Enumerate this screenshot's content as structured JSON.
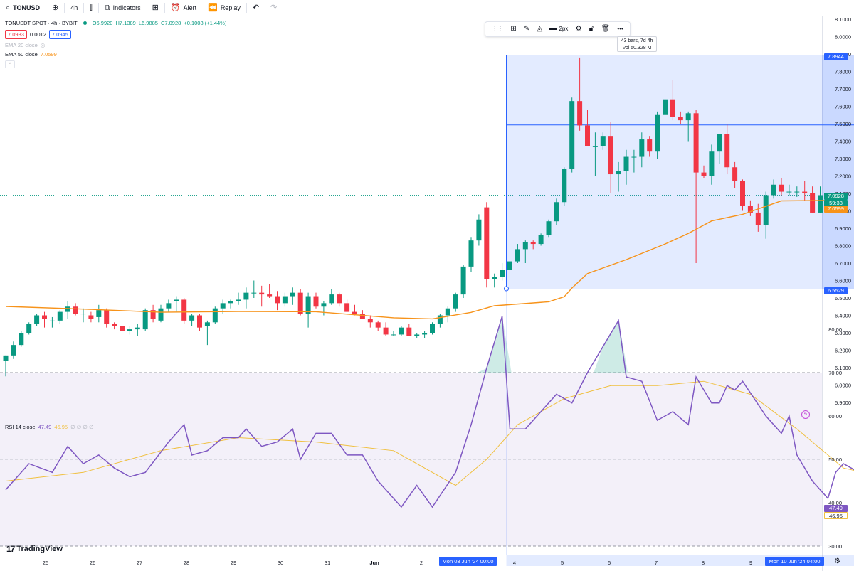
{
  "toolbar": {
    "symbol": "TONUSD",
    "interval": "4h",
    "indicators_label": "Indicators",
    "alert_label": "Alert",
    "replay_label": "Replay",
    "icons": [
      "search-icon",
      "plus-circle-icon",
      "candles-icon",
      "indicators-icon",
      "layout-grid-icon",
      "alarm-icon",
      "rewind-icon",
      "undo-icon",
      "redo-icon"
    ]
  },
  "legend": {
    "title": "TONUSDT SPOT · 4h · BYBIT",
    "ohlc": {
      "o": "O6.9920",
      "h": "H7.1389",
      "l": "L6.9885",
      "c": "C7.0928",
      "chg": "+0.1008 (+1.44%)"
    },
    "sell": "7.0933",
    "spread": "0.0012",
    "buy": "7.0945",
    "ema20": "EMA 20 close",
    "ema50_label": "EMA 50 close",
    "ema50_value": "7.0599"
  },
  "drawing_toolbar": {
    "width_label": "2px",
    "icons": [
      "drag-handle-icon",
      "template-icon",
      "pencil-icon",
      "fill-icon",
      "line-style-icon",
      "settings-icon",
      "lock-icon",
      "trash-icon",
      "more-icon"
    ]
  },
  "range_tooltip": {
    "bars": "43 bars, 7d 4h",
    "vol": "Vol 50.328 M"
  },
  "price_axis": {
    "ticks": [
      "8.1000",
      "8.0000",
      "7.9000",
      "7.8000",
      "7.7000",
      "7.6000",
      "7.5000",
      "7.4000",
      "7.3000",
      "7.2000",
      "7.1000",
      "7.0000",
      "6.9000",
      "6.8000",
      "6.7000",
      "6.6000",
      "6.5000",
      "6.4000",
      "6.3000",
      "6.2000",
      "6.1000",
      "6.0000",
      "5.9000"
    ],
    "range_top": "7.8944",
    "range_bottom": "6.5529",
    "last_price": "7.0928",
    "countdown": "59:33",
    "ema_label": "7.0599"
  },
  "rsi": {
    "legend": "RSI 14 close",
    "value": "47.49",
    "ma_value": "46.95",
    "extra": "∅ ∅ ∅ ∅",
    "ticks": [
      "80.00",
      "70.00",
      "60.00",
      "50.00",
      "40.00",
      "30.00"
    ]
  },
  "time_axis": {
    "labels": [
      "25",
      "26",
      "27",
      "28",
      "29",
      "30",
      "31",
      "Jun",
      "2",
      "4",
      "5",
      "6",
      "7",
      "8",
      "9"
    ],
    "range_start": "Mon 03 Jun '24   00:00",
    "range_end": "Mon 10 Jun '24   04:00"
  },
  "brand": "TradingView",
  "colors": {
    "up": "#089981",
    "down": "#f23645",
    "ema50": "#f7931a",
    "rsi": "#7e57c2",
    "rsi_ma": "#f0c040",
    "selection": "#2962ff"
  },
  "chart_data": {
    "type": "candlestick",
    "symbol": "TONUSDT",
    "interval": "4h",
    "ohlc": [
      [
        6.14,
        6.17,
        6.05,
        6.17
      ],
      [
        6.17,
        6.25,
        6.15,
        6.23
      ],
      [
        6.23,
        6.31,
        6.22,
        6.3
      ],
      [
        6.3,
        6.36,
        6.29,
        6.35
      ],
      [
        6.35,
        6.41,
        6.34,
        6.4
      ],
      [
        6.4,
        6.42,
        6.33,
        6.38
      ],
      [
        6.37,
        6.39,
        6.33,
        6.37
      ],
      [
        6.37,
        6.43,
        6.35,
        6.42
      ],
      [
        6.42,
        6.48,
        6.38,
        6.45
      ],
      [
        6.45,
        6.47,
        6.4,
        6.41
      ],
      [
        6.41,
        6.44,
        6.36,
        6.41
      ],
      [
        6.4,
        6.42,
        6.36,
        6.38
      ],
      [
        6.39,
        6.46,
        6.36,
        6.43
      ],
      [
        6.43,
        6.44,
        6.33,
        6.35
      ],
      [
        6.35,
        6.36,
        6.32,
        6.34
      ],
      [
        6.34,
        6.35,
        6.3,
        6.31
      ],
      [
        6.31,
        6.34,
        6.29,
        6.32
      ],
      [
        6.32,
        6.35,
        6.28,
        6.33
      ],
      [
        6.32,
        6.44,
        6.31,
        6.43
      ],
      [
        6.43,
        6.46,
        6.36,
        6.38
      ],
      [
        6.37,
        6.46,
        6.36,
        6.44
      ],
      [
        6.44,
        6.49,
        6.42,
        6.47
      ],
      [
        6.48,
        6.51,
        6.42,
        6.49
      ],
      [
        6.49,
        6.5,
        6.35,
        6.37
      ],
      [
        6.37,
        6.41,
        6.34,
        6.4
      ],
      [
        6.4,
        6.41,
        6.31,
        6.33
      ],
      [
        6.34,
        6.37,
        6.23,
        6.36
      ],
      [
        6.36,
        6.45,
        6.35,
        6.44
      ],
      [
        6.44,
        6.49,
        6.41,
        6.47
      ],
      [
        6.47,
        6.49,
        6.44,
        6.48
      ],
      [
        6.48,
        6.53,
        6.46,
        6.49
      ],
      [
        6.49,
        6.56,
        6.44,
        6.53
      ],
      [
        6.53,
        6.6,
        6.5,
        6.53
      ],
      [
        6.53,
        6.57,
        6.45,
        6.52
      ],
      [
        6.52,
        6.58,
        6.5,
        6.51
      ],
      [
        6.51,
        6.54,
        6.43,
        6.47
      ],
      [
        6.47,
        6.53,
        6.45,
        6.51
      ],
      [
        6.51,
        6.56,
        6.46,
        6.53
      ],
      [
        6.53,
        6.55,
        6.4,
        6.41
      ],
      [
        6.41,
        6.53,
        6.33,
        6.51
      ],
      [
        6.51,
        6.53,
        6.44,
        6.45
      ],
      [
        6.45,
        6.48,
        6.4,
        6.47
      ],
      [
        6.47,
        6.55,
        6.46,
        6.52
      ],
      [
        6.52,
        6.53,
        6.45,
        6.47
      ],
      [
        6.47,
        6.49,
        6.42,
        6.42
      ],
      [
        6.42,
        6.46,
        6.4,
        6.41
      ],
      [
        6.41,
        6.43,
        6.38,
        6.38
      ],
      [
        6.38,
        6.4,
        6.33,
        6.36
      ],
      [
        6.36,
        6.37,
        6.31,
        6.33
      ],
      [
        6.33,
        6.36,
        6.28,
        6.29
      ],
      [
        6.29,
        6.31,
        6.28,
        6.29
      ],
      [
        6.29,
        6.34,
        6.28,
        6.33
      ],
      [
        6.33,
        6.35,
        6.28,
        6.28
      ],
      [
        6.28,
        6.3,
        6.27,
        6.29
      ],
      [
        6.29,
        6.31,
        6.27,
        6.3
      ],
      [
        6.3,
        6.36,
        6.29,
        6.35
      ],
      [
        6.35,
        6.41,
        6.33,
        6.4
      ],
      [
        6.4,
        6.45,
        6.36,
        6.44
      ],
      [
        6.44,
        6.53,
        6.42,
        6.52
      ],
      [
        6.52,
        6.69,
        6.5,
        6.68
      ],
      [
        6.68,
        6.85,
        6.65,
        6.83
      ],
      [
        6.83,
        6.98,
        6.8,
        6.95
      ],
      [
        7.02,
        7.05,
        6.56,
        6.61
      ],
      [
        6.61,
        6.64,
        6.56,
        6.62
      ],
      [
        6.62,
        6.7,
        6.6,
        6.66
      ],
      [
        6.66,
        6.72,
        6.64,
        6.71
      ],
      [
        6.71,
        6.81,
        6.7,
        6.78
      ],
      [
        6.78,
        6.83,
        6.7,
        6.82
      ],
      [
        6.82,
        6.83,
        6.78,
        6.81
      ],
      [
        6.81,
        6.87,
        6.8,
        6.86
      ],
      [
        6.86,
        6.95,
        6.85,
        6.94
      ],
      [
        6.94,
        7.07,
        6.92,
        7.05
      ],
      [
        7.05,
        7.25,
        7.03,
        7.24
      ],
      [
        7.24,
        7.65,
        7.22,
        7.63
      ],
      [
        7.63,
        7.88,
        7.46,
        7.49
      ],
      [
        7.49,
        7.58,
        7.38,
        7.37
      ],
      [
        7.37,
        7.45,
        7.2,
        7.37
      ],
      [
        7.37,
        7.45,
        7.35,
        7.43
      ],
      [
        7.43,
        7.51,
        7.1,
        7.21
      ],
      [
        7.21,
        7.28,
        7.11,
        7.23
      ],
      [
        7.23,
        7.35,
        7.15,
        7.31
      ],
      [
        7.31,
        7.35,
        7.22,
        7.31
      ],
      [
        7.31,
        7.45,
        7.25,
        7.41
      ],
      [
        7.41,
        7.43,
        7.31,
        7.34
      ],
      [
        7.34,
        7.57,
        7.3,
        7.55
      ],
      [
        7.55,
        7.65,
        7.48,
        7.64
      ],
      [
        7.64,
        7.75,
        7.52,
        7.54
      ],
      [
        7.54,
        7.57,
        7.5,
        7.52
      ],
      [
        7.52,
        7.57,
        7.4,
        7.56
      ],
      [
        7.56,
        7.58,
        6.7,
        7.22
      ],
      [
        7.22,
        7.26,
        7.19,
        7.2
      ],
      [
        7.2,
        7.38,
        7.15,
        7.34
      ],
      [
        7.34,
        7.44,
        7.27,
        7.44
      ],
      [
        7.44,
        7.5,
        7.21,
        7.25
      ],
      [
        7.25,
        7.28,
        7.13,
        7.17
      ],
      [
        7.17,
        7.18,
        7.0,
        7.03
      ],
      [
        7.03,
        7.06,
        6.97,
        6.99
      ],
      [
        6.99,
        7.04,
        6.88,
        6.92
      ],
      [
        6.92,
        7.11,
        6.84,
        7.09
      ],
      [
        7.09,
        7.18,
        7.07,
        7.15
      ],
      [
        7.15,
        7.19,
        7.09,
        7.11
      ],
      [
        7.11,
        7.15,
        7.09,
        7.11
      ],
      [
        7.11,
        7.14,
        7.08,
        7.11
      ],
      [
        7.11,
        7.17,
        7.06,
        7.1
      ],
      [
        7.1,
        7.14,
        6.99,
        6.99
      ],
      [
        6.99,
        7.14,
        6.99,
        7.09
      ]
    ],
    "ema50": [
      [
        0,
        6.451
      ],
      [
        10,
        6.436
      ],
      [
        20,
        6.418
      ],
      [
        30,
        6.422
      ],
      [
        40,
        6.421
      ],
      [
        50,
        6.386
      ],
      [
        55,
        6.38
      ],
      [
        60,
        6.417
      ],
      [
        63,
        6.455
      ],
      [
        70,
        6.478
      ],
      [
        72,
        6.507
      ],
      [
        73,
        6.557
      ],
      [
        75,
        6.64
      ],
      [
        80,
        6.72
      ],
      [
        85,
        6.81
      ],
      [
        88,
        6.87
      ],
      [
        91,
        6.942
      ],
      [
        95,
        6.98
      ],
      [
        100,
        7.057
      ],
      [
        107,
        7.06
      ]
    ],
    "rsi": [
      [
        0,
        43
      ],
      [
        3,
        49
      ],
      [
        6,
        47
      ],
      [
        8,
        53
      ],
      [
        10,
        49
      ],
      [
        12,
        51
      ],
      [
        14,
        48
      ],
      [
        16,
        46
      ],
      [
        18,
        47
      ],
      [
        21,
        54
      ],
      [
        23,
        58
      ],
      [
        24,
        51
      ],
      [
        26,
        52
      ],
      [
        28,
        55
      ],
      [
        30,
        55
      ],
      [
        31,
        57
      ],
      [
        33,
        53
      ],
      [
        35,
        54
      ],
      [
        37,
        57
      ],
      [
        38,
        50
      ],
      [
        40,
        56
      ],
      [
        42,
        56
      ],
      [
        44,
        51
      ],
      [
        46,
        51
      ],
      [
        48,
        45
      ],
      [
        50,
        41
      ],
      [
        51,
        39
      ],
      [
        53,
        44
      ],
      [
        55,
        39
      ],
      [
        58,
        47
      ],
      [
        60,
        58
      ],
      [
        62,
        71
      ],
      [
        64,
        83
      ],
      [
        65,
        57
      ],
      [
        67,
        57
      ],
      [
        69,
        61
      ],
      [
        71,
        65
      ],
      [
        73,
        63
      ],
      [
        75,
        70
      ],
      [
        77,
        76
      ],
      [
        79,
        82
      ],
      [
        80,
        69
      ],
      [
        82,
        68
      ],
      [
        84,
        59
      ],
      [
        86,
        61
      ],
      [
        88,
        58
      ],
      [
        89,
        69
      ],
      [
        91,
        63
      ],
      [
        92,
        63
      ],
      [
        93,
        67
      ],
      [
        94,
        66
      ],
      [
        95,
        68
      ],
      [
        98,
        60
      ],
      [
        100,
        56
      ],
      [
        101,
        60
      ],
      [
        102,
        51
      ],
      [
        104,
        45
      ],
      [
        105,
        43
      ],
      [
        106,
        41
      ],
      [
        107,
        47
      ],
      [
        108,
        49
      ],
      [
        110,
        47
      ],
      [
        111,
        47
      ],
      [
        112,
        43
      ],
      [
        113,
        47
      ]
    ],
    "rsi_ma": [
      [
        0,
        45
      ],
      [
        10,
        47
      ],
      [
        20,
        52
      ],
      [
        30,
        55
      ],
      [
        40,
        54
      ],
      [
        50,
        52
      ],
      [
        58,
        44
      ],
      [
        62,
        50
      ],
      [
        66,
        58
      ],
      [
        72,
        64
      ],
      [
        78,
        67
      ],
      [
        84,
        67
      ],
      [
        90,
        68
      ],
      [
        96,
        65
      ],
      [
        102,
        57
      ],
      [
        108,
        48
      ],
      [
        113,
        46
      ]
    ],
    "price_range": {
      "start_index": 65,
      "end_index": 113,
      "high": "7.8944",
      "low": "6.5529",
      "bars": "43 bars, 7d 4h"
    },
    "ylim": [
      5.86,
      8.12
    ],
    "rsi_levels": [
      30,
      50,
      70
    ]
  }
}
